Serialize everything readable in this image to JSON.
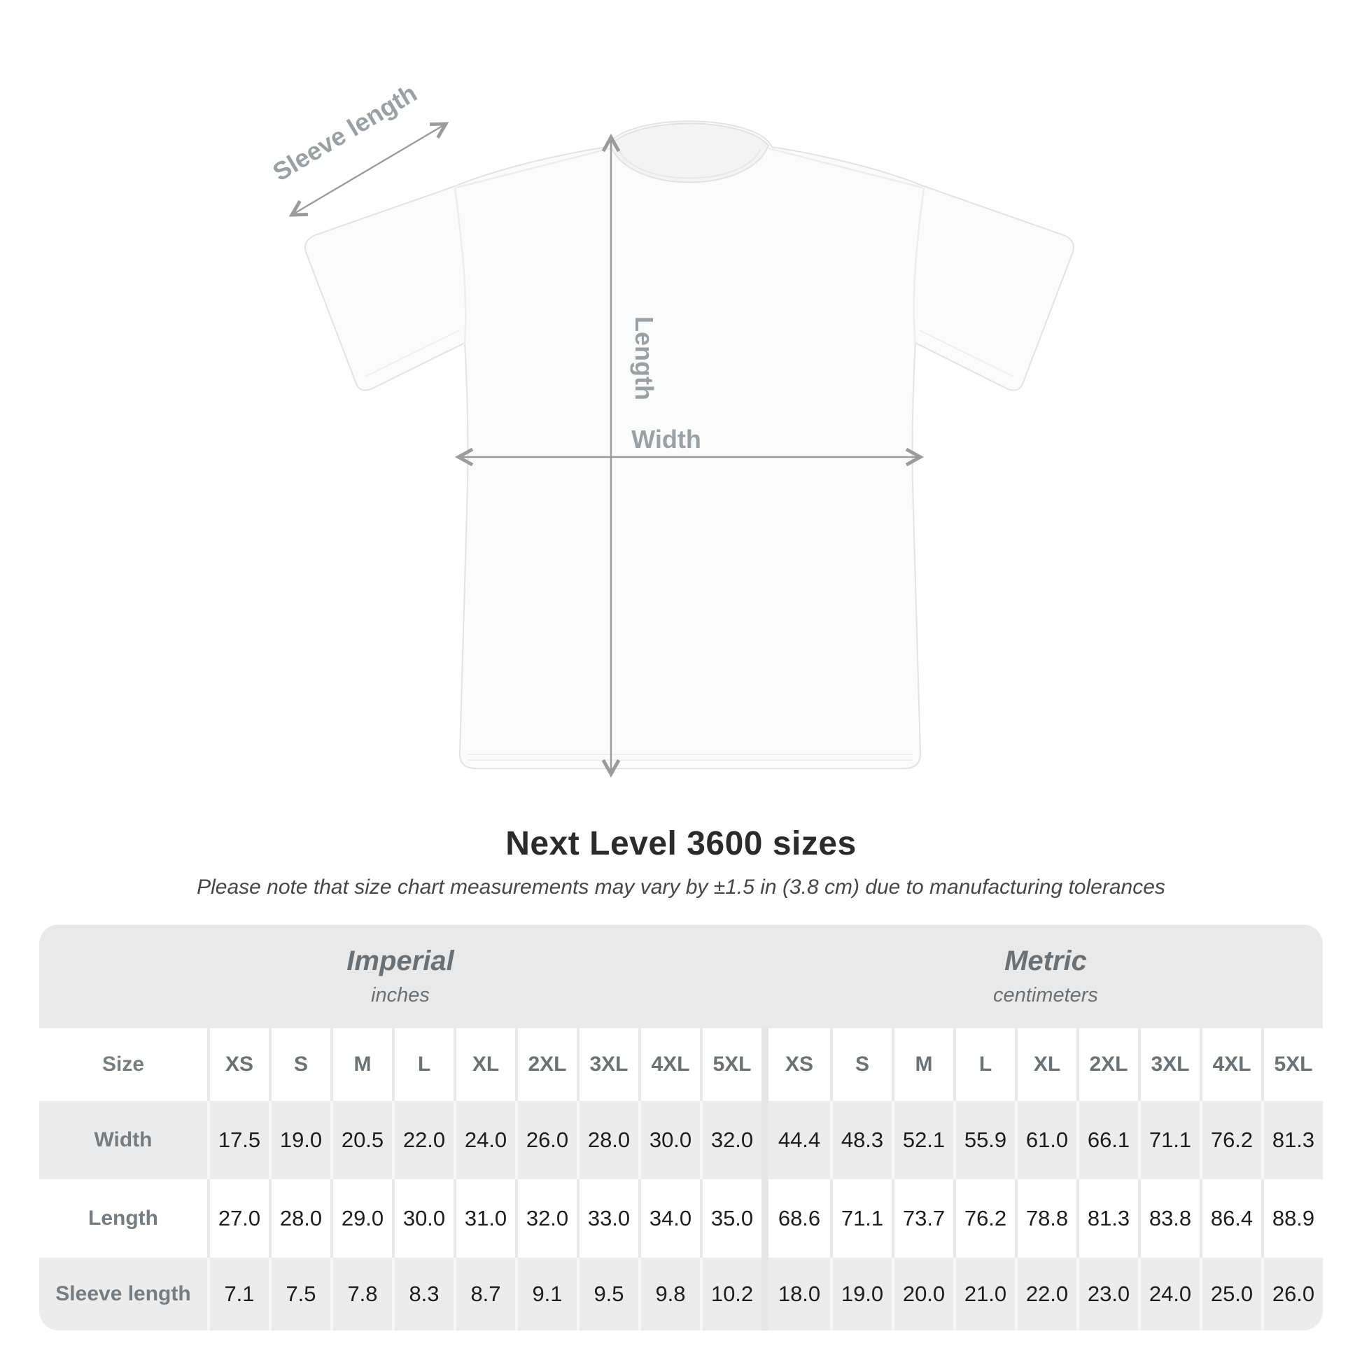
{
  "diagram": {
    "sleeve_label": "Sleeve length",
    "length_label": "Length",
    "width_label": "Width"
  },
  "title": "Next Level 3600 sizes",
  "subtitle": "Please note that size chart measurements may vary by ±1.5 in (3.8 cm) due to manufacturing tolerances",
  "table": {
    "size_header_label": "Size",
    "unit_systems": [
      {
        "name": "Imperial",
        "unit": "inches"
      },
      {
        "name": "Metric",
        "unit": "centimeters"
      }
    ],
    "sizes": [
      "XS",
      "S",
      "M",
      "L",
      "XL",
      "2XL",
      "3XL",
      "4XL",
      "5XL"
    ],
    "rows": [
      {
        "label": "Width",
        "imperial": [
          "17.5",
          "19.0",
          "20.5",
          "22.0",
          "24.0",
          "26.0",
          "28.0",
          "30.0",
          "32.0"
        ],
        "metric": [
          "44.4",
          "48.3",
          "52.1",
          "55.9",
          "61.0",
          "66.1",
          "71.1",
          "76.2",
          "81.3"
        ]
      },
      {
        "label": "Length",
        "imperial": [
          "27.0",
          "28.0",
          "29.0",
          "30.0",
          "31.0",
          "32.0",
          "33.0",
          "34.0",
          "35.0"
        ],
        "metric": [
          "68.6",
          "71.1",
          "73.7",
          "76.2",
          "78.8",
          "81.3",
          "83.8",
          "86.4",
          "88.9"
        ]
      },
      {
        "label": "Sleeve length",
        "imperial": [
          "7.1",
          "7.5",
          "7.8",
          "8.3",
          "8.7",
          "9.1",
          "9.5",
          "9.8",
          "10.2"
        ],
        "metric": [
          "18.0",
          "19.0",
          "20.0",
          "21.0",
          "22.0",
          "23.0",
          "24.0",
          "25.0",
          "26.0"
        ]
      }
    ]
  },
  "colors": {
    "header_band": "#e9e9e9",
    "row_alt": "#ececec",
    "unit_divider": "#e7e7e7",
    "arrow": "#9b9b9b",
    "muted_text": "#6e7174",
    "value_text": "#1e1e1e",
    "title_text": "#2b2b2b"
  }
}
